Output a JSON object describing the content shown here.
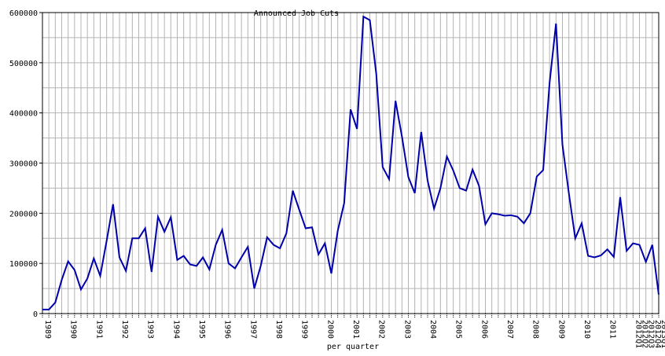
{
  "chart_data": {
    "type": "line",
    "title": "Announced Job Cuts",
    "xlabel": "per quarter",
    "ylabel": "",
    "ylim": [
      0,
      600000
    ],
    "yticks": [
      0,
      100000,
      200000,
      300000,
      400000,
      500000,
      600000
    ],
    "ytick_labels": [
      "0",
      "100000",
      "200000",
      "300000",
      "400000",
      "500000",
      "600000"
    ],
    "grid": true,
    "line_color": "#0000aa",
    "grid_color": "#b4b4b4",
    "x_start": "1989 Q1",
    "year_labels": [
      {
        "label": "1989",
        "index": 0
      },
      {
        "label": "1990",
        "index": 4
      },
      {
        "label": "1991",
        "index": 8
      },
      {
        "label": "1992",
        "index": 12
      },
      {
        "label": "1993",
        "index": 16
      },
      {
        "label": "1994",
        "index": 20
      },
      {
        "label": "1995",
        "index": 24
      },
      {
        "label": "1996",
        "index": 28
      },
      {
        "label": "1997",
        "index": 32
      },
      {
        "label": "1998",
        "index": 36
      },
      {
        "label": "1999",
        "index": 40
      },
      {
        "label": "2000",
        "index": 44
      },
      {
        "label": "2001",
        "index": 48
      },
      {
        "label": "2002",
        "index": 52
      },
      {
        "label": "2003",
        "index": 56
      },
      {
        "label": "2004",
        "index": 60
      },
      {
        "label": "2005",
        "index": 64
      },
      {
        "label": "2006",
        "index": 68
      },
      {
        "label": "2007",
        "index": 72
      },
      {
        "label": "2008",
        "index": 76
      },
      {
        "label": "2009",
        "index": 80
      },
      {
        "label": "2010",
        "index": 84
      },
      {
        "label": "2011",
        "index": 88
      },
      {
        "label": "2012Q1",
        "index": 92
      },
      {
        "label": "2012Q2",
        "index": 93
      },
      {
        "label": "2012Q3",
        "index": 94
      },
      {
        "label": "2012Q4",
        "index": 95
      },
      {
        "label": "2013Q1",
        "index": 96
      }
    ],
    "series": [
      {
        "values": [
          8000,
          8000,
          22000,
          67000,
          104000,
          87000,
          48000,
          70000,
          110000,
          75000,
          145000,
          218000,
          112000,
          85000,
          150000,
          150000,
          170000,
          83000,
          193000,
          163000,
          192000,
          107000,
          115000,
          98000,
          95000,
          112000,
          88000,
          137000,
          167000,
          100000,
          90000,
          112000,
          133000,
          50000,
          95000,
          152000,
          137000,
          130000,
          160000,
          245000,
          207000,
          170000,
          172000,
          118000,
          140000,
          80000,
          165000,
          220000,
          407000,
          368000,
          592000,
          585000,
          478000,
          292000,
          268000,
          424000,
          353000,
          272000,
          240000,
          362000,
          265000,
          209000,
          250000,
          313000,
          285000,
          250000,
          245000,
          287000,
          255000,
          178000,
          200000,
          198000,
          195000,
          196000,
          193000,
          180000,
          200000,
          273000,
          286000,
          460000,
          578000,
          337000,
          240000,
          150000,
          180000,
          115000,
          112000,
          116000,
          128000,
          113000,
          232000,
          125000,
          140000,
          137000,
          103000,
          137000,
          38000
        ]
      }
    ]
  }
}
